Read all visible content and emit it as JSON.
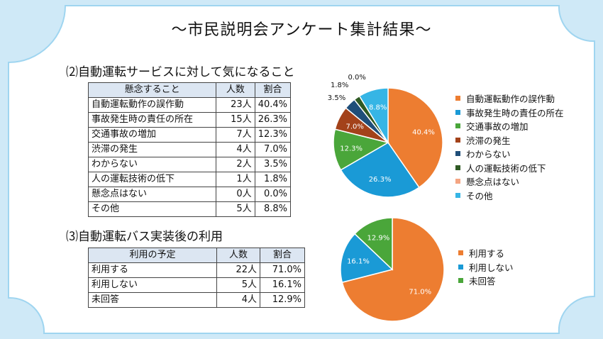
{
  "title": "～市民説明会アンケート集計結果～",
  "section2": {
    "heading": "⑵自動運転サービスに対して気になること",
    "table": {
      "headers": [
        "懸念すること",
        "人数",
        "割合"
      ],
      "rows": [
        [
          "自動運転動作の誤作動",
          "23人",
          "40.4%"
        ],
        [
          "事故発生時の責任の所在",
          "15人",
          "26.3%"
        ],
        [
          "交通事故の増加",
          "7人",
          "12.3%"
        ],
        [
          "渋滞の発生",
          "4人",
          "7.0%"
        ],
        [
          "わからない",
          "2人",
          "3.5%"
        ],
        [
          "人の運転技術の低下",
          "1人",
          "1.8%"
        ],
        [
          "懸念点はない",
          "0人",
          "0.0%"
        ],
        [
          "その他",
          "5人",
          "8.8%"
        ]
      ]
    }
  },
  "section3": {
    "heading": "⑶自動運転バス実装後の利用",
    "table": {
      "headers": [
        "利用の予定",
        "人数",
        "割合"
      ],
      "rows": [
        [
          "利用する",
          "22人",
          "71.0%"
        ],
        [
          "利用しない",
          "5人",
          "16.1%"
        ],
        [
          "未回答",
          "4人",
          "12.9%"
        ]
      ]
    }
  },
  "chart_data": [
    {
      "type": "pie",
      "categories": [
        "自動運転動作の誤作動",
        "事故発生時の責任の所在",
        "交通事故の増加",
        "渋滞の発生",
        "わからない",
        "人の運転技術の低下",
        "懸念点はない",
        "その他"
      ],
      "values": [
        40.4,
        26.3,
        12.3,
        7.0,
        3.5,
        1.8,
        0.0,
        8.8
      ],
      "labels": [
        "40.4%",
        "26.3%",
        "12.3%",
        "7.0%",
        "3.5%",
        "1.8%",
        "0.0%",
        "8.8%"
      ],
      "colors": [
        "#ed7d31",
        "#1a9ad6",
        "#4aa63a",
        "#a3421a",
        "#1f4e79",
        "#2f5a24",
        "#f4a582",
        "#36b5e5"
      ],
      "legend_position": "right"
    },
    {
      "type": "pie",
      "categories": [
        "利用する",
        "利用しない",
        "未回答"
      ],
      "values": [
        71.0,
        16.1,
        12.9
      ],
      "labels": [
        "71.0%",
        "16.1%",
        "12.9%"
      ],
      "colors": [
        "#ed7d31",
        "#1a9ad6",
        "#4aa63a"
      ],
      "legend_position": "right"
    }
  ]
}
